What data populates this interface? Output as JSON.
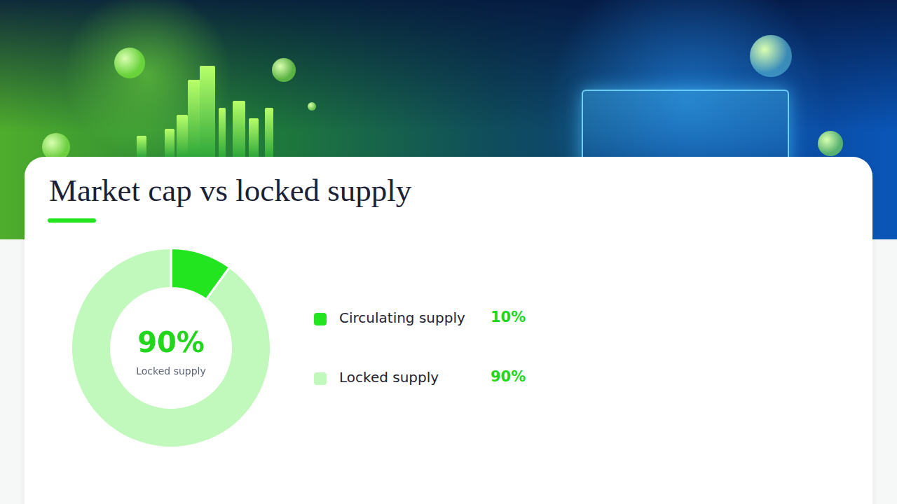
{
  "chart_data": {
    "type": "doughnut",
    "title": "Market cap vs locked supply",
    "categories": [
      "Circulating supply",
      "Locked supply"
    ],
    "values": [
      10,
      90
    ],
    "value_labels": [
      "10%",
      "90%"
    ],
    "colors": [
      "#22e51f",
      "#c1f8bb"
    ],
    "center_label": "90%",
    "center_caption": "Locked supply"
  }
}
